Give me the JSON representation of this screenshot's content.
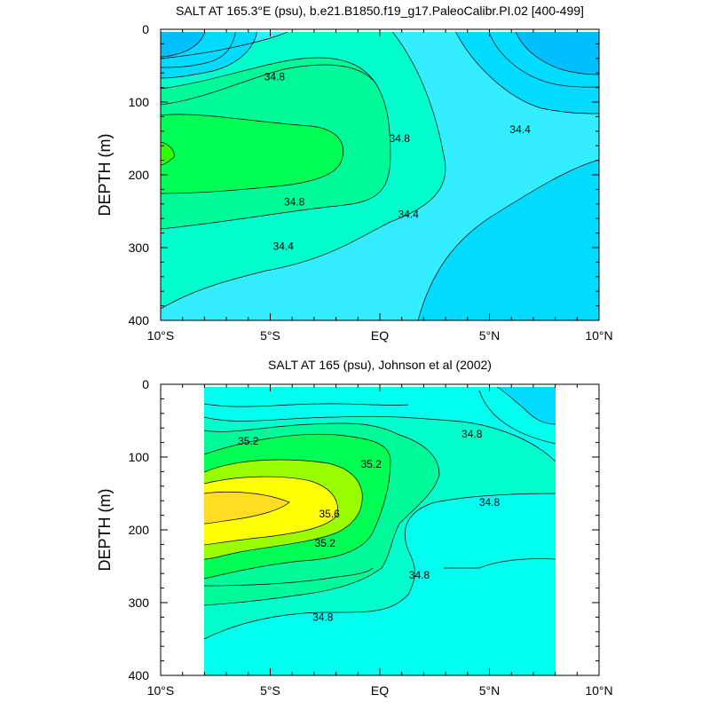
{
  "chart_data": [
    {
      "type": "contour",
      "title": "SALT AT 165.3°E (psu), b.e21.B1850.f19_g17.PaleoCalibr.PI.02 [400-499]",
      "xlabel": "",
      "ylabel": "DEPTH (m)",
      "x_ticks": [
        "10°S",
        "5°S",
        "EQ",
        "5°N",
        "10°N"
      ],
      "x_tick_values": [
        -10,
        -5,
        0,
        5,
        10
      ],
      "y_ticks": [
        "0",
        "100",
        "200",
        "300",
        "400"
      ],
      "y_tick_values": [
        0,
        100,
        200,
        300,
        400
      ],
      "xlim": [
        -10,
        10
      ],
      "ylim": [
        400,
        0
      ],
      "y_inverted": true,
      "grid": false,
      "data_extent_x": [
        -10,
        10
      ],
      "contour_levels": [
        34.0,
        34.2,
        34.4,
        34.6,
        34.8,
        35.0
      ],
      "contour_labels": [
        {
          "text": "34.8",
          "x": -4.8,
          "y": 65
        },
        {
          "text": "34.8",
          "x": 0.9,
          "y": 150
        },
        {
          "text": "34.4",
          "x": 6.4,
          "y": 138
        },
        {
          "text": "34.8",
          "x": -3.9,
          "y": 237
        },
        {
          "text": "34.4",
          "x": 1.3,
          "y": 254
        },
        {
          "text": "34.4",
          "x": -4.4,
          "y": 298
        }
      ]
    },
    {
      "type": "contour",
      "title": "SALT AT 165 (psu), Johnson et al (2002)",
      "xlabel": "",
      "ylabel": "DEPTH (m)",
      "x_ticks": [
        "10°S",
        "5°S",
        "EQ",
        "5°N",
        "10°N"
      ],
      "x_tick_values": [
        -10,
        -5,
        0,
        5,
        10
      ],
      "y_ticks": [
        "0",
        "100",
        "200",
        "300",
        "400"
      ],
      "y_tick_values": [
        0,
        100,
        200,
        300,
        400
      ],
      "xlim": [
        -10,
        10
      ],
      "ylim": [
        400,
        0
      ],
      "y_inverted": true,
      "grid": false,
      "data_extent_x": [
        -8,
        8
      ],
      "contour_levels": [
        34.4,
        34.6,
        34.8,
        35.0,
        35.2,
        35.4,
        35.6,
        35.8
      ],
      "contour_labels": [
        {
          "text": "35.2",
          "x": -6.0,
          "y": 78
        },
        {
          "text": "35.2",
          "x": -0.4,
          "y": 110
        },
        {
          "text": "34.8",
          "x": 4.2,
          "y": 68
        },
        {
          "text": "35.6",
          "x": -2.3,
          "y": 178
        },
        {
          "text": "34.8",
          "x": 5.0,
          "y": 162
        },
        {
          "text": "35.2",
          "x": -2.5,
          "y": 218
        },
        {
          "text": "34.8",
          "x": 1.8,
          "y": 262
        },
        {
          "text": "34.8",
          "x": -2.6,
          "y": 320
        }
      ]
    }
  ],
  "palette": {
    "s340": "#00bfff",
    "s342": "#00dbff",
    "s344": "#33eeff",
    "s346": "#00ffcc",
    "s348": "#00fa9a",
    "s350": "#00ff55",
    "s352": "#33ff00",
    "s354": "#99ff00",
    "s356": "#ffff00",
    "s358": "#ffdd22",
    "obs_base": "#00ffee"
  }
}
